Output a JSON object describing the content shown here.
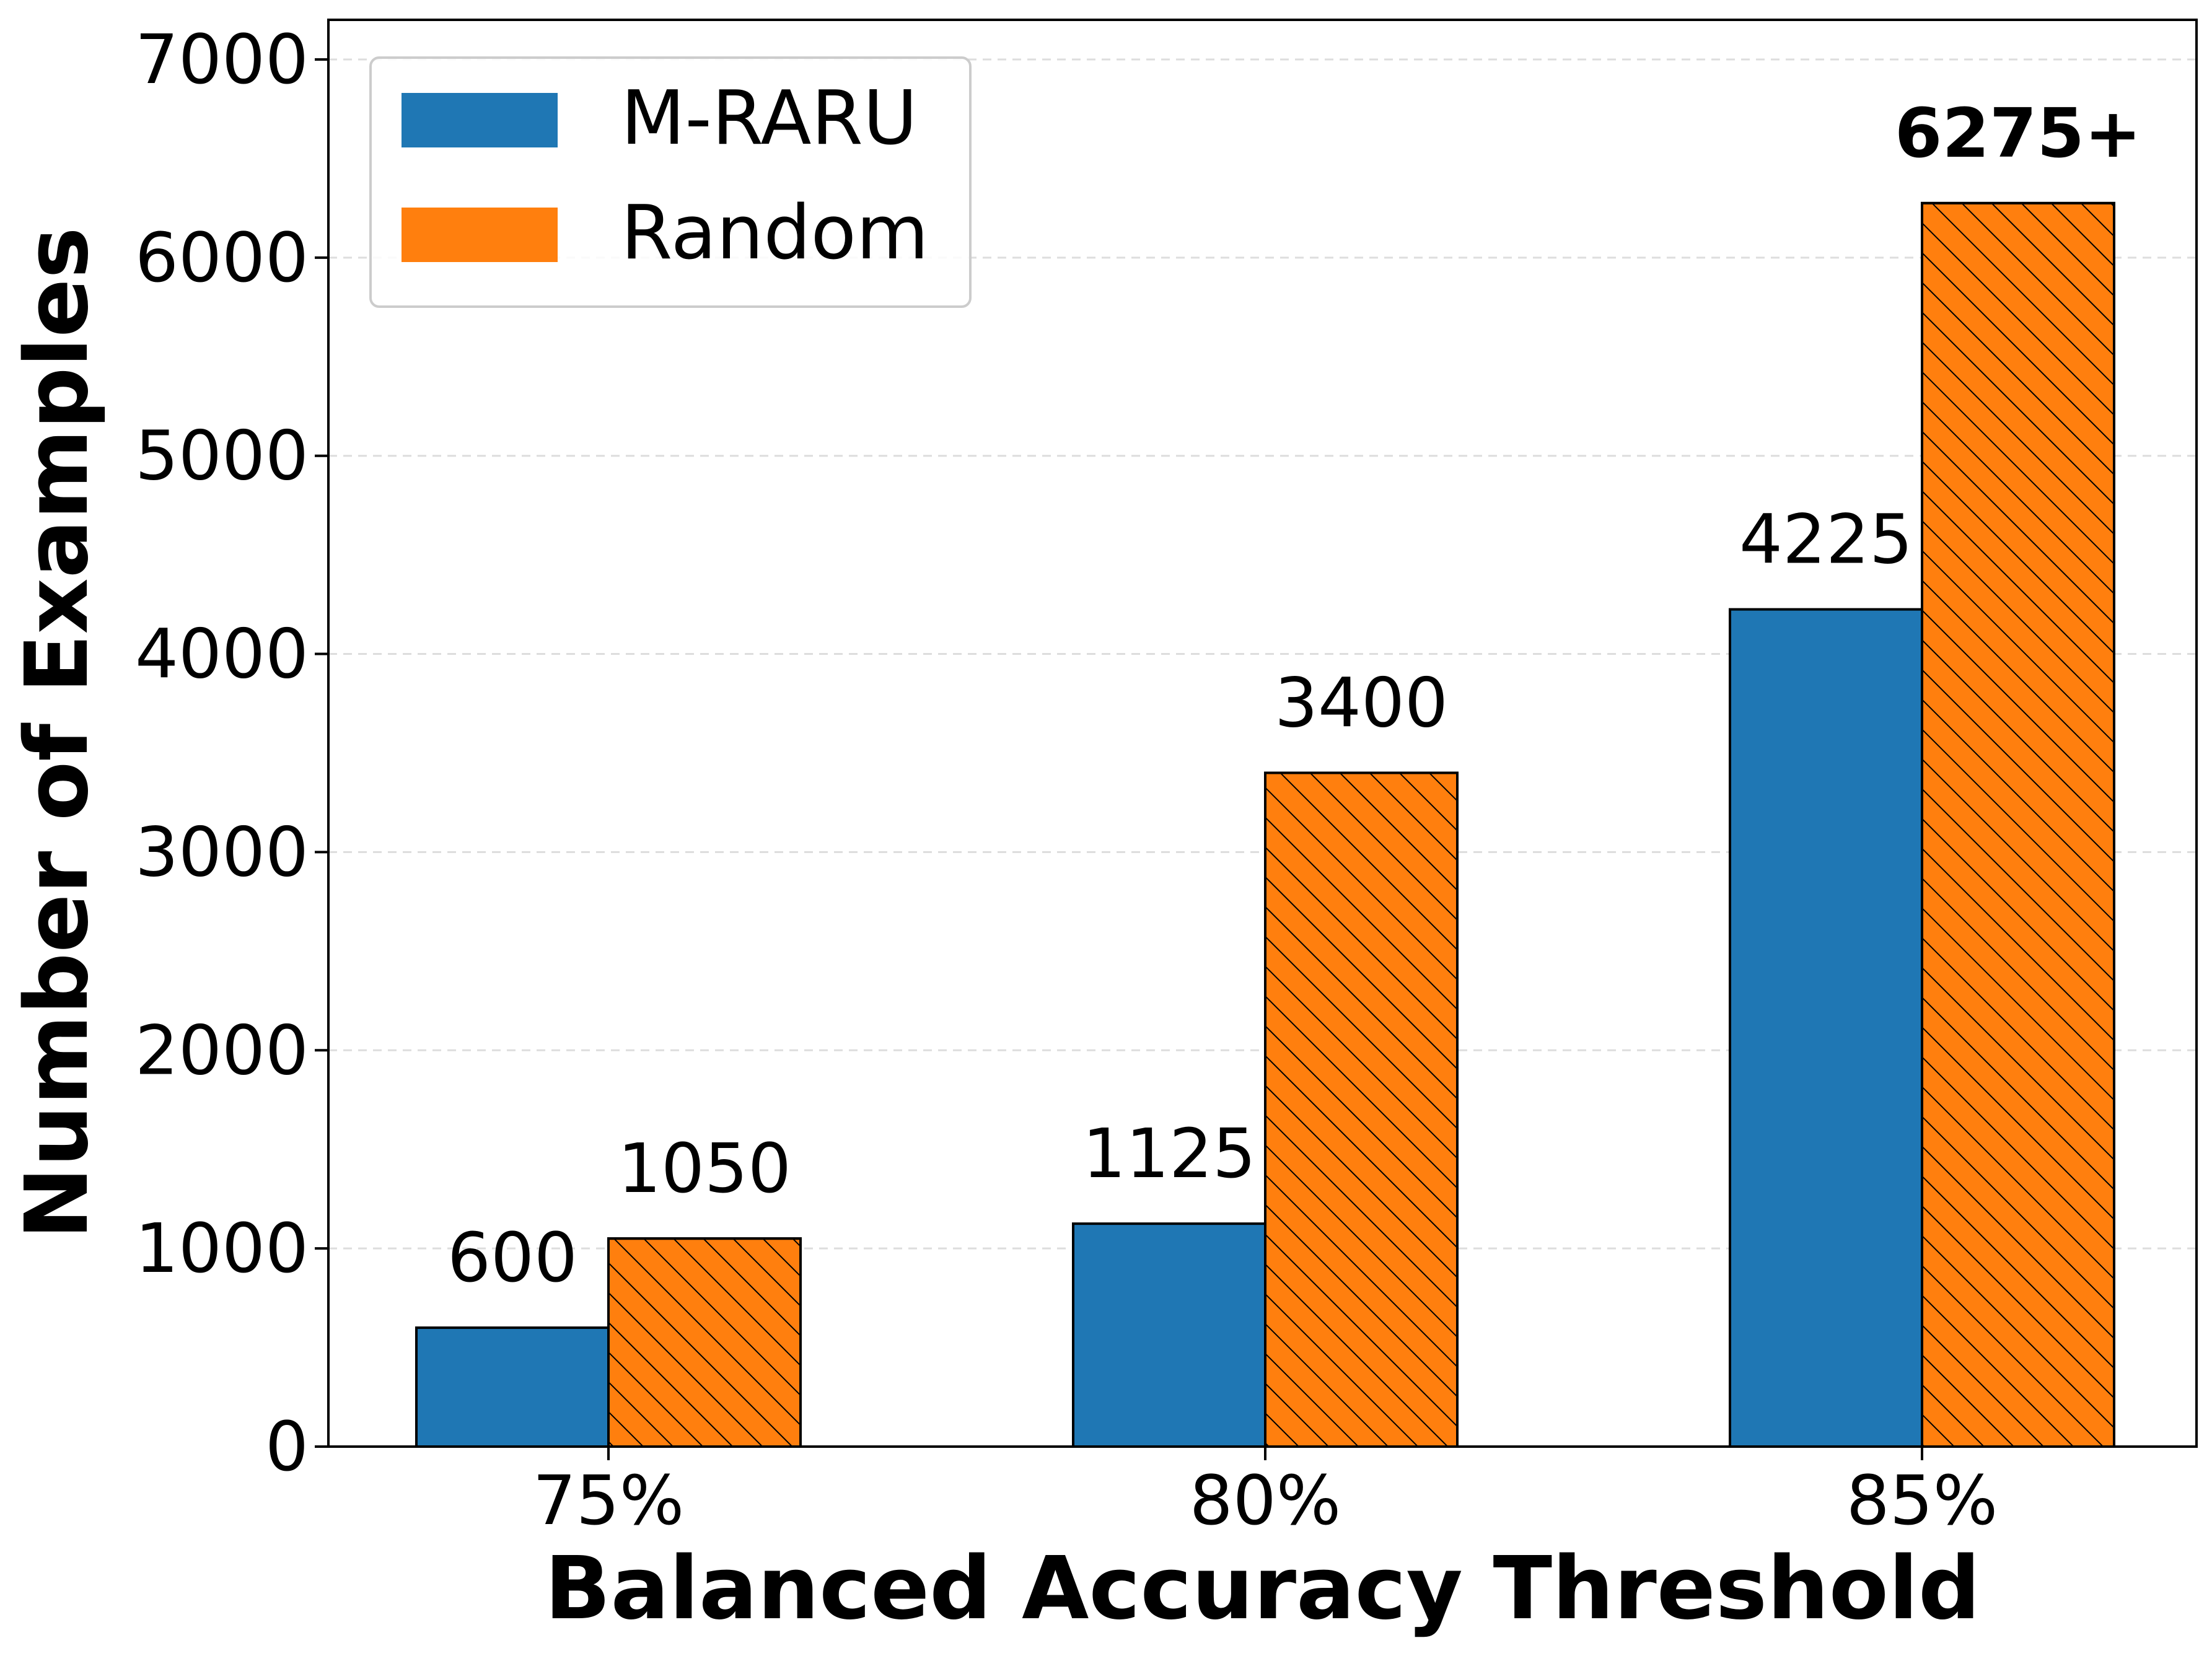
{
  "chart_data": {
    "type": "bar",
    "categories": [
      "75%",
      "80%",
      "85%"
    ],
    "series": [
      {
        "name": "M-RARU",
        "values": [
          600,
          1125,
          4225
        ],
        "color": "#1f77b4",
        "hatch": false
      },
      {
        "name": "Random",
        "values": [
          1050,
          3400,
          6275
        ],
        "color": "#ff7f0e",
        "hatch": true
      }
    ],
    "bar_labels": [
      [
        "600",
        "1125",
        "4225"
      ],
      [
        "1050",
        "3400",
        "6275+"
      ]
    ],
    "bold_labels": [
      [
        false,
        false,
        false
      ],
      [
        false,
        false,
        true
      ]
    ],
    "xlabel": "Balanced Accuracy Threshold",
    "ylabel": "Number of Examples",
    "ylim": [
      0,
      7200
    ],
    "yticks": [
      0,
      1000,
      2000,
      3000,
      4000,
      5000,
      6000,
      7000
    ],
    "grid": true,
    "legend_position": "top-left"
  }
}
